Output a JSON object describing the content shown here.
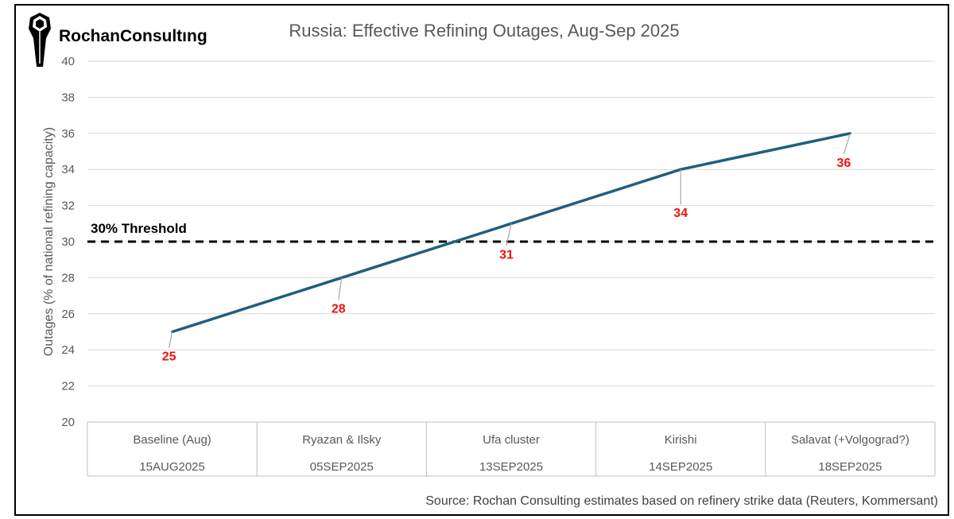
{
  "logo": {
    "text": "RochanConsultıng"
  },
  "chart_data": {
    "type": "line",
    "title": "Russia: Effective Refining Outages, Aug-Sep 2025",
    "ylabel": "Outages (% of national refining capacity)",
    "xlabel": "",
    "ylim": [
      20,
      40
    ],
    "yticks": [
      20,
      22,
      24,
      26,
      28,
      30,
      32,
      34,
      36,
      38,
      40
    ],
    "grid": true,
    "categories": [
      "Baseline (Aug)",
      "Ryazan & Ilsky",
      "Ufa cluster",
      "Kirishi",
      "Salavat (+Volgograd?)"
    ],
    "dates": [
      "15AUG2025",
      "05SEP2025",
      "13SEP2025",
      "14SEP2025",
      "18SEP2025"
    ],
    "series": [
      {
        "values": [
          25,
          28,
          31,
          34,
          36
        ],
        "color": "#1f5f7f"
      }
    ],
    "data_labels": [
      "25",
      "28",
      "31",
      "34",
      "36"
    ],
    "data_label_color": "#ee1111",
    "threshold": {
      "value": 30,
      "label": "30% Threshold"
    },
    "source": "Source: Rochan Consulting estimates based on refinery strike data (Reuters, Kommersant)"
  }
}
